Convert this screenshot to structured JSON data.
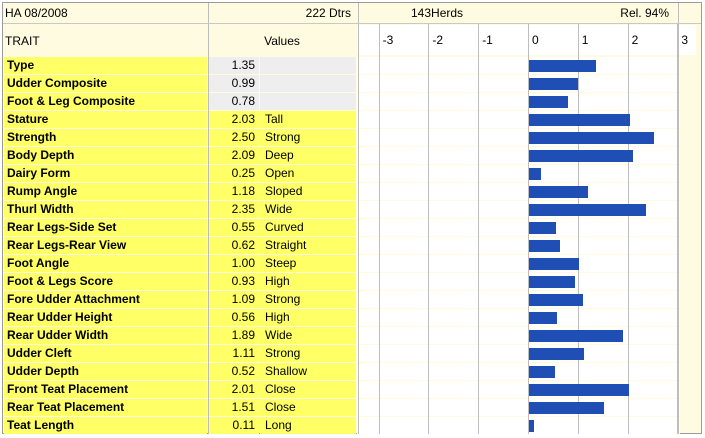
{
  "header": {
    "proof_label": "HA 08/2008",
    "daughters_label": "222 Dtrs",
    "herds_label": "143Herds",
    "reliability_label": "Rel. 94%",
    "trait_column": "TRAIT",
    "values_column": "Values"
  },
  "chart_data": {
    "type": "bar",
    "orientation": "horizontal",
    "xlim": [
      -3,
      3
    ],
    "x_ticks": [
      "-3",
      "-2",
      "-1",
      "0",
      "1",
      "2",
      "3"
    ],
    "bar_color": "#1f4fb4",
    "categories": [
      "Type",
      "Udder Composite",
      "Foot & Leg Composite",
      "Stature",
      "Strength",
      "Body Depth",
      "Dairy Form",
      "Rump Angle",
      "Thurl Width",
      "Rear Legs-Side Set",
      "Rear Legs-Rear View",
      "Foot Angle",
      "Foot & Legs Score",
      "Fore Udder Attachment",
      "Rear Udder Height",
      "Rear Udder Width",
      "Udder Cleft",
      "Udder Depth",
      "Front Teat Placement",
      "Rear Teat Placement",
      "Teat Length"
    ],
    "values": [
      1.35,
      0.99,
      0.78,
      2.03,
      2.5,
      2.09,
      0.25,
      1.18,
      2.35,
      0.55,
      0.62,
      1.0,
      0.93,
      1.09,
      0.56,
      1.89,
      1.11,
      0.52,
      2.01,
      1.51,
      0.11
    ]
  },
  "rows": [
    {
      "trait": "Type",
      "value": "1.35",
      "desc": "",
      "composite": true
    },
    {
      "trait": "Udder Composite",
      "value": "0.99",
      "desc": "",
      "composite": true
    },
    {
      "trait": "Foot & Leg Composite",
      "value": "0.78",
      "desc": "",
      "composite": true
    },
    {
      "trait": "Stature",
      "value": "2.03",
      "desc": "Tall",
      "composite": false
    },
    {
      "trait": "Strength",
      "value": "2.50",
      "desc": "Strong",
      "composite": false
    },
    {
      "trait": "Body Depth",
      "value": "2.09",
      "desc": "Deep",
      "composite": false
    },
    {
      "trait": "Dairy Form",
      "value": "0.25",
      "desc": "Open",
      "composite": false
    },
    {
      "trait": "Rump Angle",
      "value": "1.18",
      "desc": "Sloped",
      "composite": false
    },
    {
      "trait": "Thurl Width",
      "value": "2.35",
      "desc": "Wide",
      "composite": false
    },
    {
      "trait": "Rear Legs-Side Set",
      "value": "0.55",
      "desc": "Curved",
      "composite": false
    },
    {
      "trait": "Rear Legs-Rear View",
      "value": "0.62",
      "desc": "Straight",
      "composite": false
    },
    {
      "trait": "Foot Angle",
      "value": "1.00",
      "desc": "Steep",
      "composite": false
    },
    {
      "trait": "Foot & Legs Score",
      "value": "0.93",
      "desc": "High",
      "composite": false
    },
    {
      "trait": "Fore Udder Attachment",
      "value": "1.09",
      "desc": "Strong",
      "composite": false
    },
    {
      "trait": "Rear Udder Height",
      "value": "0.56",
      "desc": "High",
      "composite": false
    },
    {
      "trait": "Rear Udder Width",
      "value": "1.89",
      "desc": "Wide",
      "composite": false
    },
    {
      "trait": "Udder Cleft",
      "value": "1.11",
      "desc": "Strong",
      "composite": false
    },
    {
      "trait": "Udder Depth",
      "value": "0.52",
      "desc": "Shallow",
      "composite": false
    },
    {
      "trait": "Front Teat Placement",
      "value": "2.01",
      "desc": "Close",
      "composite": false
    },
    {
      "trait": "Rear Teat Placement",
      "value": "1.51",
      "desc": "Close",
      "composite": false
    },
    {
      "trait": "Teat Length",
      "value": "0.11",
      "desc": "Long",
      "composite": false
    }
  ]
}
